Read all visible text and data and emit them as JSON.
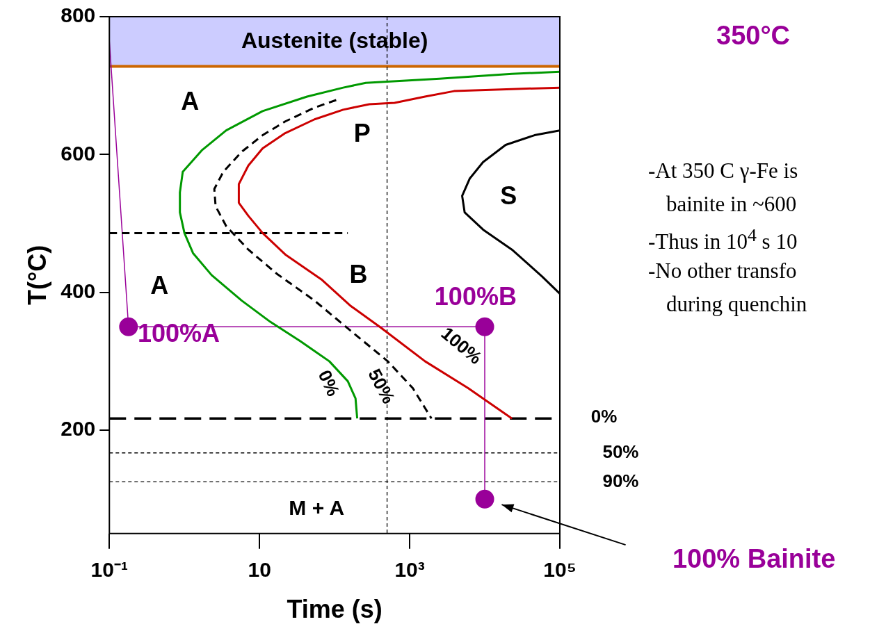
{
  "chart_data": {
    "type": "line",
    "xlabel": "Time (s)",
    "ylabel": "T(°C)",
    "log": "x",
    "marker": "none",
    "xlim": [
      0.1,
      100000
    ],
    "ylim": [
      50,
      800
    ],
    "xticks": [
      {
        "value": 0.1,
        "label": "10⁻¹"
      },
      {
        "value": 10,
        "label": "10"
      },
      {
        "value": 1000,
        "label": "10³"
      },
      {
        "value": 100000,
        "label": "10⁵"
      }
    ],
    "yticks": [
      200,
      400,
      600,
      800
    ],
    "series": [
      {
        "color": "#009900",
        "x": [
          100000,
          23000,
          2500,
          260,
          130,
          43,
          11,
          3.6,
          1.7,
          0.95,
          0.87,
          0.87,
          1.0,
          1.3,
          2.3,
          5.8,
          14,
          35,
          85,
          150,
          190,
          200
        ],
        "values": [
          720,
          717,
          710,
          704,
          697,
          684,
          663,
          635,
          606,
          575,
          545,
          516,
          486,
          457,
          425,
          388,
          357,
          329,
          300,
          271,
          246,
          217
        ]
      },
      {
        "color": "#cc0000",
        "x": [
          100000,
          23000,
          3900,
          1600,
          630,
          290,
          130,
          54,
          22,
          11,
          7.1,
          5.3,
          5.3,
          7.1,
          11,
          22,
          68,
          165,
          410,
          1600,
          6000,
          23000
        ],
        "values": [
          697,
          695,
          692,
          684,
          675,
          673,
          665,
          651,
          631,
          609,
          584,
          557,
          530,
          511,
          486,
          455,
          418,
          380,
          349,
          300,
          261,
          217
        ]
      },
      {
        "color": "#000000",
        "line_style": "dashed",
        "x": [
          105,
          54,
          22,
          11,
          5.8,
          3.3,
          2.5,
          2.6,
          3.6,
          7.1,
          17,
          54,
          165,
          510,
          1100,
          1950
        ],
        "values": [
          679,
          668,
          648,
          628,
          604,
          575,
          550,
          525,
          496,
          462,
          427,
          388,
          344,
          300,
          261,
          217
        ]
      },
      {
        "color": "#000000",
        "x": [
          100000,
          46000,
          19000,
          9500,
          6300,
          5000,
          5400,
          9500,
          23000,
          58000,
          100000
        ],
        "values": [
          635,
          628,
          614,
          589,
          565,
          540,
          516,
          491,
          462,
          423,
          398
        ]
      },
      {
        "color": "#000000",
        "line_style": "dashed",
        "x": [
          0.1,
          150
        ],
        "values": [
          486,
          486
        ]
      },
      {
        "color": "#990099",
        "x": [
          0.1,
          0.18,
          10000,
          10000
        ],
        "values": [
          765,
          350,
          350,
          100
        ]
      },
      {
        "type": "scatter",
        "marker": "circle",
        "color": "#990099",
        "x": [
          0.18,
          10000,
          10000
        ],
        "values": [
          350,
          350,
          100
        ]
      }
    ],
    "bands": [
      {
        "axis": "y",
        "from": 728,
        "to": 800,
        "label": "Austenite (stable)",
        "color": "#ccccff"
      }
    ],
    "ref_lines": [
      {
        "axis": "y",
        "value": 728,
        "label": null,
        "color": "#cc6600",
        "line_style": "solid"
      },
      {
        "axis": "y",
        "value": 217,
        "label": null,
        "line_style": "dashed"
      },
      {
        "axis": "y",
        "value": 167,
        "label": null,
        "line_style": "dotted"
      },
      {
        "axis": "y",
        "value": 125,
        "label": null,
        "line_style": "dotted"
      },
      {
        "axis": "x",
        "value": 500,
        "label": null,
        "line_style": "dotted"
      }
    ],
    "annotations": [
      "A",
      "P",
      "S",
      "A",
      "B",
      "100%B",
      "100%A",
      "100%",
      "50%",
      "0%",
      "M + A",
      "100% Bainite",
      "0%",
      "50%",
      "90%",
      "350°C",
      "-At 350 C γ-Fe is",
      "bainite in ~600",
      "-Thus in 10$^{4}$ s 10",
      "-No other transfo",
      "during quenchin"
    ]
  }
}
